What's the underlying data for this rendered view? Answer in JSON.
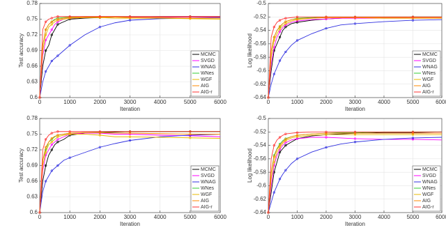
{
  "chart_data": [
    {
      "type": "line",
      "xlabel": "Iteration",
      "ylabel": "Test accuracy",
      "xlim": [
        0,
        6000
      ],
      "xticks": [
        0,
        1000,
        2000,
        3000,
        4000,
        5000,
        6000
      ],
      "ylim": [
        0.6,
        0.78
      ],
      "yticks": [
        0.6,
        0.63,
        0.66,
        0.69,
        0.72,
        0.75,
        0.78
      ],
      "grid": true,
      "legend": "lower right",
      "x": [
        0,
        100,
        200,
        300,
        400,
        500,
        600,
        800,
        1000,
        1500,
        2000,
        2500,
        3000,
        4000,
        5000,
        6000
      ],
      "series": [
        {
          "name": "MCMC",
          "color": "#000000",
          "values": [
            0.6,
            0.66,
            0.69,
            0.7,
            0.72,
            0.73,
            0.74,
            0.745,
            0.75,
            0.752,
            0.753,
            0.754,
            0.754,
            0.755,
            0.755,
            0.755
          ]
        },
        {
          "name": "SVGD",
          "color": "#ff00ff",
          "values": [
            0.6,
            0.68,
            0.71,
            0.72,
            0.73,
            0.74,
            0.745,
            0.75,
            0.752,
            0.753,
            0.754,
            0.754,
            0.754,
            0.754,
            0.754,
            0.754
          ]
        },
        {
          "name": "WNAG",
          "color": "#3030e0",
          "values": [
            0.6,
            0.63,
            0.65,
            0.66,
            0.67,
            0.675,
            0.68,
            0.69,
            0.7,
            0.72,
            0.735,
            0.743,
            0.748,
            0.751,
            0.752,
            0.753
          ]
        },
        {
          "name": "WNes",
          "color": "#33cc33",
          "values": [
            0.6,
            0.7,
            0.73,
            0.74,
            0.745,
            0.75,
            0.752,
            0.753,
            0.754,
            0.755,
            0.755,
            0.755,
            0.755,
            0.755,
            0.755,
            0.755
          ]
        },
        {
          "name": "WGF",
          "color": "#e8b800",
          "values": [
            0.6,
            0.69,
            0.72,
            0.735,
            0.74,
            0.745,
            0.748,
            0.75,
            0.752,
            0.753,
            0.753,
            0.752,
            0.752,
            0.752,
            0.751,
            0.75
          ]
        },
        {
          "name": "AIG",
          "color": "#ff8800",
          "values": [
            0.6,
            0.7,
            0.73,
            0.74,
            0.745,
            0.748,
            0.75,
            0.752,
            0.753,
            0.754,
            0.754,
            0.754,
            0.753,
            0.753,
            0.752,
            0.752
          ]
        },
        {
          "name": "AIG-r",
          "color": "#ff3333",
          "values": [
            0.6,
            0.73,
            0.745,
            0.75,
            0.752,
            0.754,
            0.755,
            0.755,
            0.755,
            0.755,
            0.755,
            0.755,
            0.755,
            0.755,
            0.755,
            0.755
          ]
        }
      ]
    },
    {
      "type": "line",
      "xlabel": "Iteration",
      "ylabel": "Log likelihood",
      "xlim": [
        0,
        6000
      ],
      "xticks": [
        0,
        1000,
        2000,
        3000,
        4000,
        5000,
        6000
      ],
      "ylim": [
        -0.64,
        -0.5
      ],
      "yticks": [
        -0.64,
        -0.62,
        -0.6,
        -0.58,
        -0.56,
        -0.54,
        -0.52,
        -0.5
      ],
      "grid": true,
      "legend": "lower right",
      "x": [
        0,
        100,
        200,
        300,
        400,
        500,
        600,
        800,
        1000,
        1500,
        2000,
        2500,
        3000,
        4000,
        5000,
        6000
      ],
      "series": [
        {
          "name": "MCMC",
          "color": "#000000",
          "values": [
            -0.64,
            -0.6,
            -0.57,
            -0.56,
            -0.55,
            -0.54,
            -0.535,
            -0.53,
            -0.528,
            -0.525,
            -0.523,
            -0.522,
            -0.521,
            -0.521,
            -0.52,
            -0.52
          ]
        },
        {
          "name": "SVGD",
          "color": "#ff00ff",
          "values": [
            -0.64,
            -0.59,
            -0.565,
            -0.55,
            -0.542,
            -0.536,
            -0.532,
            -0.528,
            -0.526,
            -0.524,
            -0.523,
            -0.522,
            -0.522,
            -0.522,
            -0.522,
            -0.522
          ]
        },
        {
          "name": "WNAG",
          "color": "#3030e0",
          "values": [
            -0.64,
            -0.62,
            -0.605,
            -0.595,
            -0.585,
            -0.578,
            -0.572,
            -0.562,
            -0.555,
            -0.545,
            -0.537,
            -0.532,
            -0.53,
            -0.527,
            -0.525,
            -0.524
          ]
        },
        {
          "name": "WNes",
          "color": "#33cc33",
          "values": [
            -0.64,
            -0.57,
            -0.55,
            -0.54,
            -0.535,
            -0.53,
            -0.527,
            -0.524,
            -0.522,
            -0.521,
            -0.52,
            -0.52,
            -0.52,
            -0.52,
            -0.52,
            -0.52
          ]
        },
        {
          "name": "WGF",
          "color": "#e8b800",
          "values": [
            -0.64,
            -0.58,
            -0.555,
            -0.545,
            -0.538,
            -0.533,
            -0.53,
            -0.526,
            -0.524,
            -0.522,
            -0.521,
            -0.521,
            -0.521,
            -0.522,
            -0.522,
            -0.522
          ]
        },
        {
          "name": "AIG",
          "color": "#ff8800",
          "values": [
            -0.64,
            -0.57,
            -0.55,
            -0.54,
            -0.534,
            -0.53,
            -0.527,
            -0.524,
            -0.523,
            -0.522,
            -0.521,
            -0.521,
            -0.521,
            -0.521,
            -0.521,
            -0.521
          ]
        },
        {
          "name": "AIG-r",
          "color": "#ff3333",
          "values": [
            -0.64,
            -0.55,
            -0.535,
            -0.528,
            -0.525,
            -0.523,
            -0.522,
            -0.521,
            -0.52,
            -0.52,
            -0.52,
            -0.52,
            -0.52,
            -0.52,
            -0.52,
            -0.52
          ]
        }
      ]
    },
    {
      "type": "line",
      "xlabel": "Iteration",
      "ylabel": "Test accuracy",
      "xlim": [
        0,
        6000
      ],
      "xticks": [
        0,
        1000,
        2000,
        3000,
        4000,
        5000,
        6000
      ],
      "ylim": [
        0.6,
        0.78
      ],
      "yticks": [
        0.6,
        0.63,
        0.66,
        0.69,
        0.72,
        0.75,
        0.78
      ],
      "grid": true,
      "legend": "lower right",
      "x": [
        0,
        100,
        200,
        300,
        400,
        500,
        600,
        800,
        1000,
        1500,
        2000,
        2500,
        3000,
        4000,
        5000,
        6000
      ],
      "series": [
        {
          "name": "MCMC",
          "color": "#000000",
          "values": [
            0.6,
            0.66,
            0.69,
            0.71,
            0.72,
            0.73,
            0.735,
            0.74,
            0.748,
            0.752,
            0.753,
            0.754,
            0.755,
            0.755,
            0.755,
            0.755
          ]
        },
        {
          "name": "SVGD",
          "color": "#ff00ff",
          "values": [
            0.6,
            0.68,
            0.71,
            0.72,
            0.73,
            0.735,
            0.74,
            0.745,
            0.75,
            0.752,
            0.752,
            0.75,
            0.75,
            0.748,
            0.747,
            0.745
          ]
        },
        {
          "name": "WNAG",
          "color": "#3030e0",
          "values": [
            0.6,
            0.64,
            0.66,
            0.67,
            0.68,
            0.685,
            0.69,
            0.7,
            0.705,
            0.715,
            0.725,
            0.732,
            0.738,
            0.745,
            0.748,
            0.75
          ]
        },
        {
          "name": "WNes",
          "color": "#33cc33",
          "values": [
            0.6,
            0.7,
            0.72,
            0.735,
            0.74,
            0.745,
            0.748,
            0.75,
            0.752,
            0.753,
            0.754,
            0.755,
            0.755,
            0.755,
            0.755,
            0.755
          ]
        },
        {
          "name": "WGF",
          "color": "#e8b800",
          "values": [
            0.6,
            0.69,
            0.715,
            0.73,
            0.735,
            0.74,
            0.745,
            0.748,
            0.75,
            0.75,
            0.748,
            0.745,
            0.745,
            0.744,
            0.743,
            0.742
          ]
        },
        {
          "name": "AIG",
          "color": "#ff8800",
          "values": [
            0.6,
            0.7,
            0.725,
            0.735,
            0.742,
            0.746,
            0.748,
            0.75,
            0.752,
            0.753,
            0.753,
            0.752,
            0.752,
            0.751,
            0.75,
            0.75
          ]
        },
        {
          "name": "AIG-r",
          "color": "#ff3333",
          "values": [
            0.6,
            0.72,
            0.74,
            0.748,
            0.752,
            0.754,
            0.755,
            0.755,
            0.755,
            0.755,
            0.755,
            0.755,
            0.755,
            0.755,
            0.755,
            0.755
          ]
        }
      ]
    },
    {
      "type": "line",
      "xlabel": "Iteration",
      "ylabel": "Log likelihood",
      "xlim": [
        0,
        6000
      ],
      "xticks": [
        0,
        1000,
        2000,
        3000,
        4000,
        5000,
        6000
      ],
      "ylim": [
        -0.64,
        -0.5
      ],
      "yticks": [
        -0.64,
        -0.62,
        -0.6,
        -0.58,
        -0.56,
        -0.54,
        -0.52,
        -0.5
      ],
      "grid": true,
      "legend": "lower right",
      "x": [
        0,
        100,
        200,
        300,
        400,
        500,
        600,
        800,
        1000,
        1500,
        2000,
        2500,
        3000,
        4000,
        5000,
        6000
      ],
      "series": [
        {
          "name": "MCMC",
          "color": "#000000",
          "values": [
            -0.64,
            -0.61,
            -0.58,
            -0.565,
            -0.55,
            -0.545,
            -0.54,
            -0.535,
            -0.53,
            -0.526,
            -0.524,
            -0.523,
            -0.522,
            -0.521,
            -0.521,
            -0.52
          ]
        },
        {
          "name": "SVGD",
          "color": "#ff00ff",
          "values": [
            -0.64,
            -0.6,
            -0.57,
            -0.555,
            -0.546,
            -0.54,
            -0.536,
            -0.532,
            -0.53,
            -0.528,
            -0.528,
            -0.529,
            -0.53,
            -0.531,
            -0.531,
            -0.532
          ]
        },
        {
          "name": "WNAG",
          "color": "#3030e0",
          "values": [
            -0.64,
            -0.625,
            -0.61,
            -0.6,
            -0.59,
            -0.583,
            -0.577,
            -0.567,
            -0.56,
            -0.55,
            -0.543,
            -0.538,
            -0.535,
            -0.531,
            -0.529,
            -0.528
          ]
        },
        {
          "name": "WNes",
          "color": "#33cc33",
          "values": [
            -0.64,
            -0.58,
            -0.555,
            -0.545,
            -0.538,
            -0.533,
            -0.53,
            -0.527,
            -0.525,
            -0.523,
            -0.522,
            -0.521,
            -0.521,
            -0.52,
            -0.52,
            -0.52
          ]
        },
        {
          "name": "WGF",
          "color": "#e8b800",
          "values": [
            -0.64,
            -0.59,
            -0.565,
            -0.55,
            -0.543,
            -0.537,
            -0.533,
            -0.529,
            -0.527,
            -0.525,
            -0.524,
            -0.524,
            -0.524,
            -0.524,
            -0.524,
            -0.524
          ]
        },
        {
          "name": "AIG",
          "color": "#ff8800",
          "values": [
            -0.64,
            -0.58,
            -0.557,
            -0.546,
            -0.54,
            -0.535,
            -0.531,
            -0.527,
            -0.525,
            -0.523,
            -0.522,
            -0.522,
            -0.522,
            -0.522,
            -0.522,
            -0.522
          ]
        },
        {
          "name": "AIG-r",
          "color": "#ff3333",
          "values": [
            -0.64,
            -0.56,
            -0.54,
            -0.532,
            -0.528,
            -0.525,
            -0.523,
            -0.522,
            -0.521,
            -0.52,
            -0.52,
            -0.52,
            -0.52,
            -0.52,
            -0.52,
            -0.52
          ]
        }
      ]
    }
  ]
}
